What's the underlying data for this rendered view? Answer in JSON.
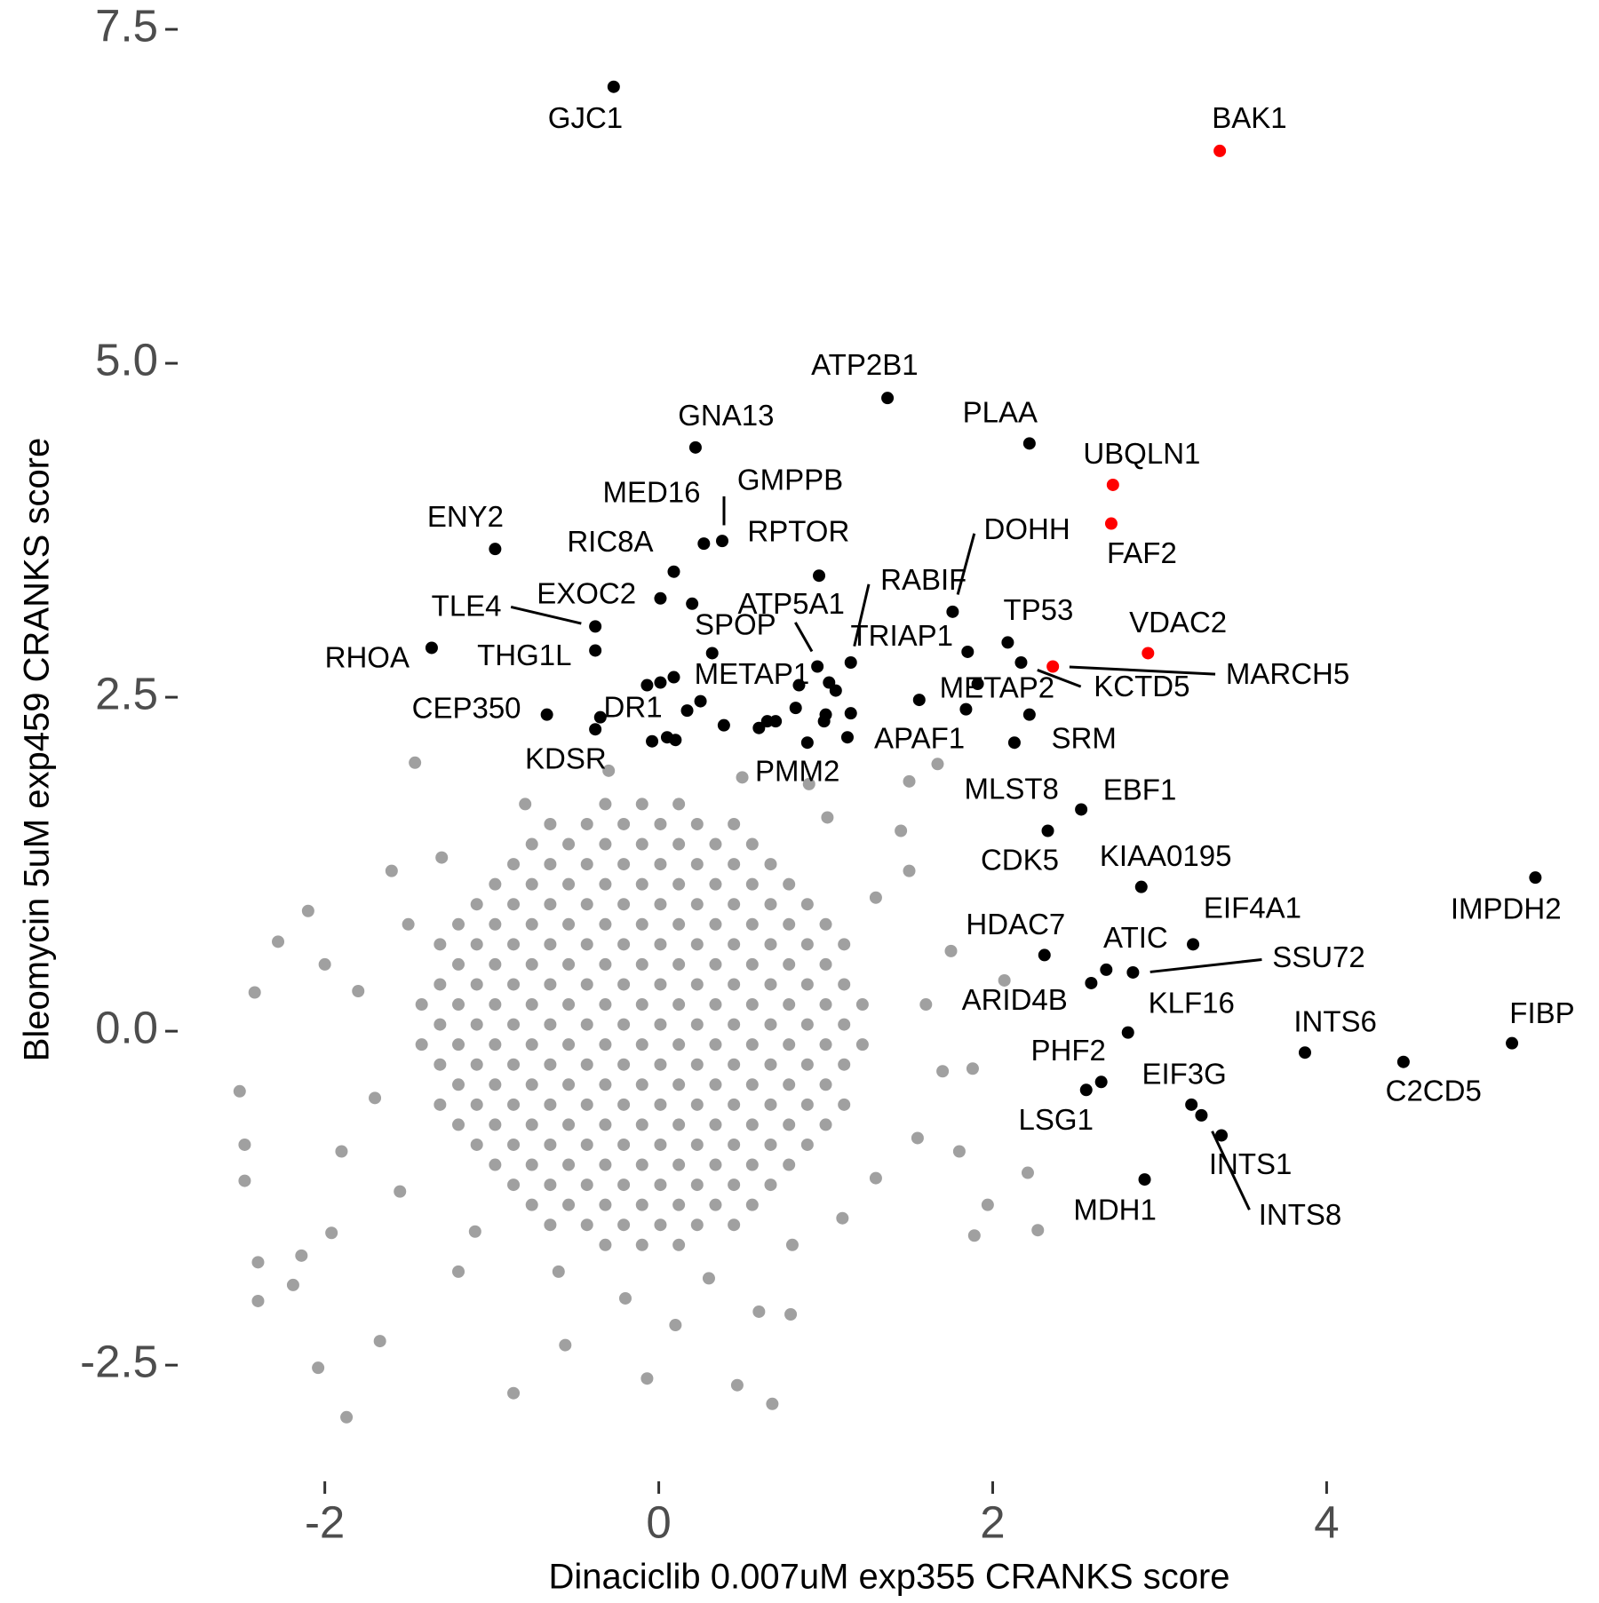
{
  "chart_data": {
    "type": "scatter",
    "xlabel": "Dinaciclib 0.007uM exp355 CRANKS score",
    "ylabel": "Bleomycin 5uM exp459 CRANKS score",
    "xlim": [
      -2.86,
      5.53
    ],
    "ylim": [
      -3.35,
      7.6
    ],
    "xticks": [
      -2,
      0,
      2,
      4
    ],
    "yticks": [
      -2.5,
      {
        "value": 0,
        "label": "0.0"
      },
      2.5,
      {
        "value": 5,
        "label": "5.0"
      },
      7.5
    ],
    "grid": false,
    "series": [
      {
        "color": "#a0a0a0",
        "x": [
          -0.32,
          -0.1,
          0.12,
          -0.65,
          -0.43,
          -0.21,
          0.01,
          0.23,
          0.45,
          -0.76,
          -0.54,
          -0.32,
          -0.1,
          0.12,
          0.34,
          0.56,
          -0.87,
          -0.65,
          -0.43,
          -0.21,
          0.01,
          0.23,
          0.45,
          0.67,
          -0.98,
          -0.76,
          -0.54,
          -0.32,
          -0.1,
          0.12,
          0.34,
          0.56,
          0.78,
          -1.09,
          -0.87,
          -0.65,
          -0.43,
          -0.21,
          0.01,
          0.23,
          0.45,
          0.67,
          0.89,
          -1.2,
          -0.98,
          -0.76,
          -0.54,
          -0.32,
          -0.1,
          0.12,
          0.34,
          0.56,
          0.78,
          1.0,
          -1.31,
          -1.09,
          -0.87,
          -0.65,
          -0.43,
          -0.21,
          0.01,
          0.23,
          0.45,
          0.67,
          0.89,
          1.11,
          -1.2,
          -0.98,
          -0.76,
          -0.54,
          -0.32,
          -0.1,
          0.12,
          0.34,
          0.56,
          0.78,
          1.0,
          -1.31,
          -1.09,
          -0.87,
          -0.65,
          -0.43,
          -0.21,
          0.01,
          0.23,
          0.45,
          0.67,
          0.89,
          1.11,
          -1.42,
          -1.2,
          -0.98,
          -0.76,
          -0.54,
          -0.32,
          -0.1,
          0.12,
          0.34,
          0.56,
          0.78,
          1.0,
          1.22,
          -1.31,
          -1.09,
          -0.87,
          -0.65,
          -0.43,
          -0.21,
          0.01,
          0.23,
          0.45,
          0.67,
          0.89,
          1.11,
          -1.42,
          -1.2,
          -0.98,
          -0.76,
          -0.54,
          -0.32,
          -0.1,
          0.12,
          0.34,
          0.56,
          0.78,
          1.0,
          1.22,
          -1.31,
          -1.09,
          -0.87,
          -0.65,
          -0.43,
          -0.21,
          0.01,
          0.23,
          0.45,
          0.67,
          0.89,
          1.11,
          -1.2,
          -0.98,
          -0.76,
          -0.54,
          -0.32,
          -0.1,
          0.12,
          0.34,
          0.56,
          0.78,
          1.0,
          -1.31,
          -1.09,
          -0.87,
          -0.65,
          -0.43,
          -0.21,
          0.01,
          0.23,
          0.45,
          0.67,
          0.89,
          1.11,
          -1.2,
          -0.98,
          -0.76,
          -0.54,
          -0.32,
          -0.1,
          0.12,
          0.34,
          0.56,
          0.78,
          1.0,
          -1.09,
          -0.87,
          -0.65,
          -0.43,
          -0.21,
          0.01,
          0.23,
          0.45,
          0.67,
          0.89,
          -0.98,
          -0.76,
          -0.54,
          -0.32,
          -0.1,
          0.12,
          0.34,
          0.56,
          0.78,
          -0.87,
          -0.65,
          -0.43,
          -0.21,
          0.01,
          0.23,
          0.45,
          0.67,
          -0.76,
          -0.54,
          -0.32,
          -0.1,
          0.12,
          0.34,
          0.56,
          -0.65,
          -0.43,
          -0.21,
          0.01,
          0.23,
          0.45,
          -0.32,
          -0.1,
          0.12,
          -2.51,
          -2.48,
          -2.48,
          -2.4,
          -2.4,
          -2.28,
          -2.42,
          -1.87,
          -2.04,
          -1.67,
          -0.07,
          0.68,
          0.47,
          -0.87,
          -1.46,
          2.27,
          2.21,
          1.89,
          1.97,
          1.88,
          2.07,
          1.67,
          1.5,
          1.01,
          -2.1,
          -2.19,
          -2.14,
          -1.96,
          -0.56,
          0.79,
          -1.6,
          -1.7,
          -1.8,
          -1.55,
          -1.5,
          1.5,
          1.6,
          1.55,
          1.7,
          1.45,
          0.5,
          -0.3,
          0.9,
          -0.8,
          0.3,
          -0.6,
          0.8,
          -1.1,
          1.1,
          -0.2,
          1.3,
          -1.3,
          1.3,
          -1.9,
          -2.0,
          1.75,
          1.8,
          -1.2,
          0.1,
          0.6
        ],
        "y": [
          1.7,
          1.7,
          1.7,
          1.55,
          1.55,
          1.55,
          1.55,
          1.55,
          1.55,
          1.4,
          1.4,
          1.4,
          1.4,
          1.4,
          1.4,
          1.4,
          1.25,
          1.25,
          1.25,
          1.25,
          1.25,
          1.25,
          1.25,
          1.25,
          1.1,
          1.1,
          1.1,
          1.1,
          1.1,
          1.1,
          1.1,
          1.1,
          1.1,
          0.95,
          0.95,
          0.95,
          0.95,
          0.95,
          0.95,
          0.95,
          0.95,
          0.95,
          0.95,
          0.8,
          0.8,
          0.8,
          0.8,
          0.8,
          0.8,
          0.8,
          0.8,
          0.8,
          0.8,
          0.8,
          0.65,
          0.65,
          0.65,
          0.65,
          0.65,
          0.65,
          0.65,
          0.65,
          0.65,
          0.65,
          0.65,
          0.65,
          0.5,
          0.5,
          0.5,
          0.5,
          0.5,
          0.5,
          0.5,
          0.5,
          0.5,
          0.5,
          0.5,
          0.35,
          0.35,
          0.35,
          0.35,
          0.35,
          0.35,
          0.35,
          0.35,
          0.35,
          0.35,
          0.35,
          0.35,
          0.2,
          0.2,
          0.2,
          0.2,
          0.2,
          0.2,
          0.2,
          0.2,
          0.2,
          0.2,
          0.2,
          0.2,
          0.2,
          0.05,
          0.05,
          0.05,
          0.05,
          0.05,
          0.05,
          0.05,
          0.05,
          0.05,
          0.05,
          0.05,
          0.05,
          -0.1,
          -0.1,
          -0.1,
          -0.1,
          -0.1,
          -0.1,
          -0.1,
          -0.1,
          -0.1,
          -0.1,
          -0.1,
          -0.1,
          -0.1,
          -0.25,
          -0.25,
          -0.25,
          -0.25,
          -0.25,
          -0.25,
          -0.25,
          -0.25,
          -0.25,
          -0.25,
          -0.25,
          -0.25,
          -0.4,
          -0.4,
          -0.4,
          -0.4,
          -0.4,
          -0.4,
          -0.4,
          -0.4,
          -0.4,
          -0.4,
          -0.4,
          -0.55,
          -0.55,
          -0.55,
          -0.55,
          -0.55,
          -0.55,
          -0.55,
          -0.55,
          -0.55,
          -0.55,
          -0.55,
          -0.55,
          -0.7,
          -0.7,
          -0.7,
          -0.7,
          -0.7,
          -0.7,
          -0.7,
          -0.7,
          -0.7,
          -0.7,
          -0.7,
          -0.85,
          -0.85,
          -0.85,
          -0.85,
          -0.85,
          -0.85,
          -0.85,
          -0.85,
          -0.85,
          -0.85,
          -1.0,
          -1.0,
          -1.0,
          -1.0,
          -1.0,
          -1.0,
          -1.0,
          -1.0,
          -1.0,
          -1.15,
          -1.15,
          -1.15,
          -1.15,
          -1.15,
          -1.15,
          -1.15,
          -1.15,
          -1.3,
          -1.3,
          -1.3,
          -1.3,
          -1.3,
          -1.3,
          -1.3,
          -1.45,
          -1.45,
          -1.45,
          -1.45,
          -1.45,
          -1.45,
          -1.6,
          -1.6,
          -1.6,
          -0.45,
          -0.85,
          -1.12,
          -1.73,
          -2.02,
          0.67,
          0.29,
          -2.89,
          -2.52,
          -2.32,
          -2.6,
          -2.79,
          -2.65,
          -2.71,
          2.01,
          -1.49,
          -1.06,
          -1.53,
          -1.3,
          -0.28,
          0.38,
          2.0,
          1.87,
          1.6,
          0.9,
          -1.9,
          -1.68,
          -1.51,
          -2.35,
          -2.12,
          1.2,
          -0.5,
          0.3,
          -1.2,
          0.8,
          1.2,
          0.2,
          -0.8,
          -0.3,
          1.5,
          1.9,
          1.95,
          1.85,
          1.7,
          -1.85,
          -1.8,
          -1.6,
          -1.5,
          -1.4,
          -2.0,
          -1.1,
          1.3,
          1.0,
          -0.9,
          0.5,
          0.6,
          -0.9,
          -1.8,
          -2.2,
          -2.1
        ]
      },
      {
        "color": "#000000",
        "x": [
          -0.07,
          0.01,
          0.09,
          0.2,
          0.25,
          0.17,
          -0.04,
          0.05,
          0.1,
          0.39,
          0.6,
          0.65,
          0.7,
          0.82,
          1.02,
          1.06,
          1.0,
          0.99,
          1.15,
          1.56,
          1.84
        ],
        "y": [
          2.59,
          2.61,
          2.65,
          3.2,
          2.47,
          2.4,
          2.17,
          2.2,
          2.18,
          2.29,
          2.27,
          2.32,
          2.32,
          2.42,
          2.61,
          2.55,
          2.37,
          2.32,
          2.38,
          2.48,
          2.41
        ]
      },
      {
        "color": "#000000",
        "labels": [
          "GJC1",
          "ATP2B1",
          "GNA13",
          "PLAA",
          "ENY2",
          "MED16",
          "GMPPB",
          "RPTOR",
          "RIC8A",
          "DOHH",
          "RABIF",
          "EXOC2",
          "TLE4",
          "ATP5A1",
          "SPOP",
          "TP53",
          "TRIAP1",
          "RHOA",
          "THG1L",
          "KCTD5",
          "METAP1",
          "METAP2",
          "CEP350",
          "DR1",
          "SRM",
          "APAF1",
          "KDSR",
          "PMM2",
          "MLST8",
          "EBF1",
          "CDK5",
          "KIAA0195",
          "IMPDH2",
          "EIF4A1",
          "HDAC7",
          "ATIC",
          "SSU72",
          "ARID4B",
          "KLF16",
          "INTS6",
          "FIBP",
          "C2CD5",
          "PHF2",
          "EIF3G",
          "LSG1",
          "INTS1",
          "INTS8",
          "MDH1"
        ],
        "x": [
          -0.27,
          1.37,
          0.22,
          2.22,
          -0.98,
          0.27,
          0.38,
          0.96,
          0.09,
          1.76,
          1.15,
          0.01,
          -0.38,
          0.95,
          0.32,
          2.09,
          1.85,
          -1.36,
          -0.38,
          2.17,
          0.84,
          1.91,
          -0.67,
          -0.35,
          2.22,
          1.13,
          -0.38,
          0.89,
          2.13,
          2.53,
          2.33,
          2.89,
          5.25,
          3.2,
          2.31,
          2.68,
          2.84,
          2.59,
          2.81,
          3.87,
          5.11,
          4.46,
          2.65,
          3.19,
          2.56,
          3.37,
          3.25,
          2.91
        ],
        "y": [
          7.07,
          4.74,
          4.37,
          4.4,
          3.61,
          3.65,
          3.67,
          3.41,
          3.44,
          3.14,
          2.76,
          3.24,
          3.03,
          2.73,
          2.83,
          2.91,
          2.84,
          2.87,
          2.85,
          2.76,
          2.59,
          2.6,
          2.37,
          2.35,
          2.37,
          2.2,
          2.26,
          2.16,
          2.16,
          1.66,
          1.5,
          1.08,
          1.15,
          0.65,
          0.57,
          0.46,
          0.44,
          0.36,
          -0.01,
          -0.16,
          -0.09,
          -0.23,
          -0.38,
          -0.55,
          -0.44,
          -0.78,
          -0.63,
          -1.11
        ]
      },
      {
        "color": "#ff0000",
        "labels": [
          "BAK1",
          "UBQLN1",
          "FAF2",
          "VDAC2",
          "MARCH5"
        ],
        "x": [
          3.36,
          2.72,
          2.71,
          2.93,
          2.36
        ],
        "y": [
          6.59,
          4.09,
          3.8,
          2.83,
          2.73
        ]
      }
    ]
  }
}
